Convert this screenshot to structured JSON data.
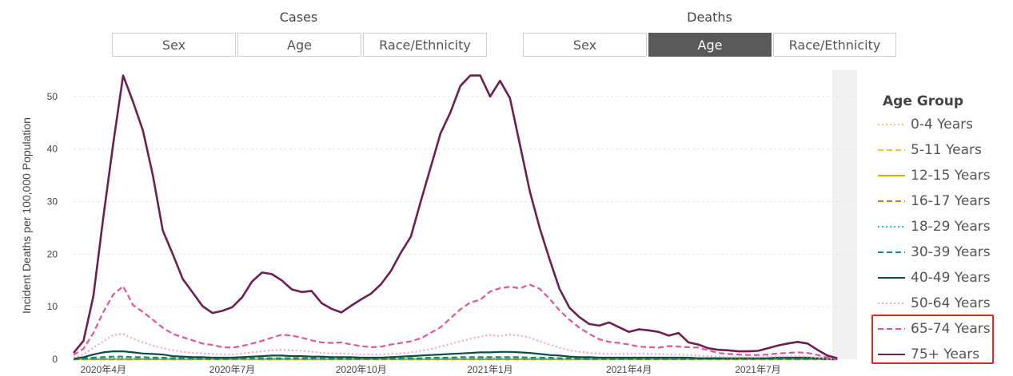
{
  "filters": {
    "cases": {
      "title": "Cases",
      "options": [
        "Sex",
        "Age",
        "Race/Ethnicity"
      ],
      "selected": null
    },
    "deaths": {
      "title": "Deaths",
      "options": [
        "Sex",
        "Age",
        "Race/Ethnicity"
      ],
      "selected": "Age"
    }
  },
  "legend": {
    "title": "Age Group",
    "items": [
      {
        "label": "0-4 Years",
        "color": "#f3c887",
        "dash": "dot"
      },
      {
        "label": "5-11 Years",
        "color": "#f1c232",
        "dash": "dash"
      },
      {
        "label": "12-15 Years",
        "color": "#d4b106",
        "dash": "solid"
      },
      {
        "label": "16-17 Years",
        "color": "#a88d1c",
        "dash": "dash"
      },
      {
        "label": "18-29 Years",
        "color": "#2ec4b6",
        "dash": "dot"
      },
      {
        "label": "30-39 Years",
        "color": "#1a8a7a",
        "dash": "dash"
      },
      {
        "label": "40-49 Years",
        "color": "#0f4d3c",
        "dash": "solid"
      },
      {
        "label": "50-64 Years",
        "color": "#f4a6cf",
        "dash": "dot"
      },
      {
        "label": "65-74 Years",
        "color": "#e0559b",
        "dash": "dash"
      },
      {
        "label": "75+ Years",
        "color": "#6e1f52",
        "dash": "solid"
      }
    ],
    "highlighted": [
      "65-74 Years",
      "75+ Years"
    ],
    "highlight_color": "#e0291f"
  },
  "chart_data": {
    "type": "line",
    "ylabel": "Incident Deaths per 100,000 Population",
    "xlabel": "",
    "ylim": [
      0,
      55
    ],
    "yticks": [
      0,
      10,
      20,
      30,
      40,
      50
    ],
    "x_tick_labels": [
      "2020年4月",
      "2020年7月",
      "2020年10月",
      "2021年1月",
      "2021年4月",
      "2021年7月"
    ],
    "x_tick_weeks": [
      3,
      16,
      29,
      42,
      56,
      69
    ],
    "weeks": 80,
    "shaded_region_start_week": 76.5,
    "grid": true,
    "legend_position": "right",
    "series": [
      {
        "name": "75+ Years",
        "values": [
          1.2,
          3.5,
          12,
          27,
          41,
          54,
          49,
          43.5,
          35,
          24.5,
          20,
          15.3,
          12.7,
          10.1,
          8.8,
          9.2,
          9.9,
          11.8,
          14.8,
          16.5,
          16.2,
          15,
          13.3,
          12.8,
          13,
          10.7,
          9.6,
          8.9,
          10.2,
          11.4,
          12.5,
          14.3,
          16.8,
          20.3,
          23.3,
          30,
          36.5,
          43,
          47,
          52,
          54,
          54,
          50,
          53,
          49.7,
          40.9,
          32,
          25,
          19,
          13.4,
          9.8,
          8,
          6.7,
          6.4,
          7,
          6.1,
          5.2,
          5.7,
          5.5,
          5.2,
          4.5,
          5,
          3.2,
          2.8,
          2.1,
          1.8,
          1.7,
          1.5,
          1.5,
          1.6,
          2.1,
          2.6,
          3,
          3.3,
          3,
          1.8,
          0.7,
          0.2
        ]
      },
      {
        "name": "65-74 Years",
        "values": [
          0.8,
          2,
          5,
          9,
          12.3,
          13.9,
          10.3,
          9,
          7.5,
          6,
          4.8,
          4.2,
          3.6,
          3,
          2.7,
          2.3,
          2.2,
          2.5,
          3,
          3.5,
          4.1,
          4.7,
          4.5,
          4.1,
          3.6,
          3.2,
          3.1,
          3.2,
          2.8,
          2.5,
          2.3,
          2.4,
          2.8,
          3.1,
          3.4,
          4,
          5,
          6.1,
          7.8,
          9.5,
          10.8,
          11.3,
          12.9,
          13.5,
          13.8,
          13.5,
          14.2,
          13.4,
          11.5,
          9.3,
          7.5,
          6,
          4.8,
          3.8,
          3.3,
          3.1,
          2.8,
          2.4,
          2.3,
          2.2,
          2.5,
          2.4,
          2.3,
          2.2,
          1.7,
          1.2,
          1,
          0.9,
          0.8,
          0.8,
          0.9,
          1.1,
          1.2,
          1.3,
          1.2,
          0.8,
          0.3,
          0.1
        ]
      },
      {
        "name": "50-64 Years",
        "values": [
          0.3,
          0.9,
          2.2,
          3.4,
          4.6,
          4.8,
          3.9,
          3.2,
          2.6,
          2.1,
          1.7,
          1.4,
          1.2,
          1.1,
          1,
          0.9,
          0.9,
          1.1,
          1.3,
          1.5,
          1.7,
          1.8,
          1.7,
          1.6,
          1.4,
          1.2,
          1.1,
          1.1,
          1,
          0.9,
          0.9,
          0.9,
          1,
          1.1,
          1.3,
          1.6,
          1.9,
          2.4,
          2.9,
          3.4,
          3.9,
          4.3,
          4.6,
          4.4,
          4.7,
          4.5,
          4.1,
          3.4,
          2.8,
          2.2,
          1.7,
          1.4,
          1.2,
          1.1,
          1,
          1,
          1,
          1.1,
          1,
          1,
          0.9,
          0.9,
          0.8,
          0.7,
          0.6,
          0.5,
          0.4,
          0.4,
          0.4,
          0.4,
          0.5,
          0.5,
          0.6,
          0.6,
          0.5,
          0.3,
          0.1,
          0
        ]
      },
      {
        "name": "40-49 Years",
        "values": [
          0.1,
          0.4,
          0.9,
          1.3,
          1.5,
          1.5,
          1.3,
          1.1,
          1,
          0.9,
          0.6,
          0.5,
          0.4,
          0.4,
          0.3,
          0.3,
          0.3,
          0.4,
          0.5,
          0.6,
          0.7,
          0.7,
          0.6,
          0.6,
          0.5,
          0.5,
          0.4,
          0.4,
          0.4,
          0.3,
          0.3,
          0.3,
          0.4,
          0.5,
          0.6,
          0.7,
          0.8,
          0.9,
          1,
          1.1,
          1.2,
          1.3,
          1.3,
          1.4,
          1.4,
          1.3,
          1.2,
          1,
          0.8,
          0.7,
          0.5,
          0.4,
          0.4,
          0.3,
          0.3,
          0.3,
          0.3,
          0.3,
          0.3,
          0.3,
          0.3,
          0.3,
          0.3,
          0.2,
          0.2,
          0.2,
          0.2,
          0.2,
          0.2,
          0.2,
          0.2,
          0.3,
          0.3,
          0.3,
          0.3,
          0.2,
          0.1,
          0
        ]
      },
      {
        "name": "30-39 Years",
        "values": [
          0,
          0.15,
          0.3,
          0.4,
          0.5,
          0.5,
          0.4,
          0.4,
          0.3,
          0.3,
          0.2,
          0.2,
          0.2,
          0.1,
          0.1,
          0.1,
          0.1,
          0.2,
          0.2,
          0.2,
          0.2,
          0.2,
          0.2,
          0.2,
          0.2,
          0.2,
          0.1,
          0.1,
          0.1,
          0.1,
          0.1,
          0.1,
          0.1,
          0.2,
          0.2,
          0.2,
          0.3,
          0.3,
          0.3,
          0.4,
          0.4,
          0.4,
          0.4,
          0.4,
          0.4,
          0.4,
          0.3,
          0.3,
          0.3,
          0.2,
          0.2,
          0.1,
          0.1,
          0.1,
          0.1,
          0.1,
          0.1,
          0.1,
          0.1,
          0.1,
          0.1,
          0.1,
          0.1,
          0.1,
          0.1,
          0.1,
          0.1,
          0.1,
          0.1,
          0.1,
          0.1,
          0.1,
          0.1,
          0.1,
          0.1,
          0.1,
          0,
          0
        ]
      },
      {
        "name": "18-29 Years",
        "values": [
          0,
          0.05,
          0.1,
          0.1,
          0.15,
          0.15,
          0.1,
          0.1,
          0.1,
          0.1,
          0.1,
          0.05,
          0.05,
          0.05,
          0.05,
          0.05,
          0.05,
          0.05,
          0.05,
          0.1,
          0.1,
          0.1,
          0.1,
          0.1,
          0.05,
          0.05,
          0.05,
          0.05,
          0.05,
          0.05,
          0.05,
          0.05,
          0.05,
          0.05,
          0.1,
          0.1,
          0.1,
          0.1,
          0.1,
          0.1,
          0.15,
          0.15,
          0.15,
          0.15,
          0.15,
          0.1,
          0.1,
          0.1,
          0.1,
          0.05,
          0.05,
          0.05,
          0.05,
          0.05,
          0.05,
          0.05,
          0.05,
          0.05,
          0.05,
          0.05,
          0.05,
          0.05,
          0.05,
          0.05,
          0.05,
          0.05,
          0.05,
          0.05,
          0.05,
          0.05,
          0.05,
          0.05,
          0.05,
          0.05,
          0.05,
          0.05,
          0,
          0
        ]
      },
      {
        "name": "16-17 Years",
        "values": [
          0,
          0,
          0,
          0,
          0,
          0,
          0,
          0,
          0,
          0,
          0,
          0,
          0,
          0,
          0,
          0,
          0,
          0,
          0,
          0,
          0,
          0,
          0,
          0,
          0,
          0,
          0,
          0,
          0,
          0,
          0,
          0,
          0,
          0,
          0,
          0,
          0,
          0,
          0,
          0,
          0,
          0,
          0,
          0,
          0,
          0,
          0,
          0,
          0,
          0,
          0,
          0,
          0,
          0,
          0,
          0,
          0,
          0,
          0,
          0,
          0,
          0,
          0,
          0,
          0,
          0,
          0,
          0,
          0,
          0,
          0,
          0,
          0,
          0,
          0,
          0,
          0,
          0
        ]
      },
      {
        "name": "12-15 Years",
        "values": [
          0,
          0,
          0,
          0,
          0,
          0,
          0,
          0,
          0,
          0,
          0,
          0,
          0,
          0,
          0,
          0,
          0,
          0,
          0,
          0,
          0,
          0,
          0,
          0,
          0,
          0,
          0,
          0,
          0,
          0,
          0,
          0,
          0,
          0,
          0,
          0,
          0,
          0,
          0,
          0,
          0,
          0,
          0,
          0,
          0,
          0,
          0,
          0,
          0,
          0,
          0,
          0,
          0,
          0,
          0,
          0,
          0,
          0,
          0,
          0,
          0,
          0,
          0,
          0,
          0,
          0,
          0,
          0,
          0,
          0,
          0,
          0,
          0,
          0,
          0,
          0,
          0,
          0
        ]
      },
      {
        "name": "5-11 Years",
        "values": [
          0,
          0,
          0,
          0,
          0,
          0,
          0,
          0,
          0,
          0,
          0,
          0,
          0,
          0,
          0,
          0,
          0,
          0,
          0,
          0,
          0,
          0,
          0,
          0,
          0,
          0,
          0,
          0,
          0,
          0,
          0,
          0,
          0,
          0,
          0,
          0,
          0,
          0,
          0,
          0,
          0,
          0,
          0,
          0,
          0,
          0,
          0,
          0,
          0,
          0,
          0,
          0,
          0,
          0,
          0,
          0,
          0,
          0,
          0,
          0,
          0,
          0,
          0,
          0,
          0,
          0,
          0,
          0,
          0,
          0,
          0,
          0,
          0,
          0,
          0,
          0,
          0,
          0
        ]
      },
      {
        "name": "0-4 Years",
        "values": [
          0,
          0,
          0,
          0,
          0,
          0,
          0,
          0,
          0,
          0,
          0,
          0,
          0,
          0,
          0,
          0,
          0,
          0,
          0,
          0,
          0,
          0,
          0,
          0,
          0,
          0,
          0,
          0,
          0,
          0,
          0,
          0,
          0,
          0,
          0,
          0,
          0,
          0,
          0,
          0,
          0,
          0,
          0,
          0,
          0,
          0,
          0,
          0,
          0,
          0,
          0,
          0,
          0,
          0,
          0,
          0,
          0,
          0,
          0,
          0,
          0,
          0,
          0,
          0,
          0,
          0,
          0,
          0,
          0,
          0,
          0,
          0,
          0,
          0,
          0,
          0,
          0,
          0
        ]
      }
    ]
  }
}
